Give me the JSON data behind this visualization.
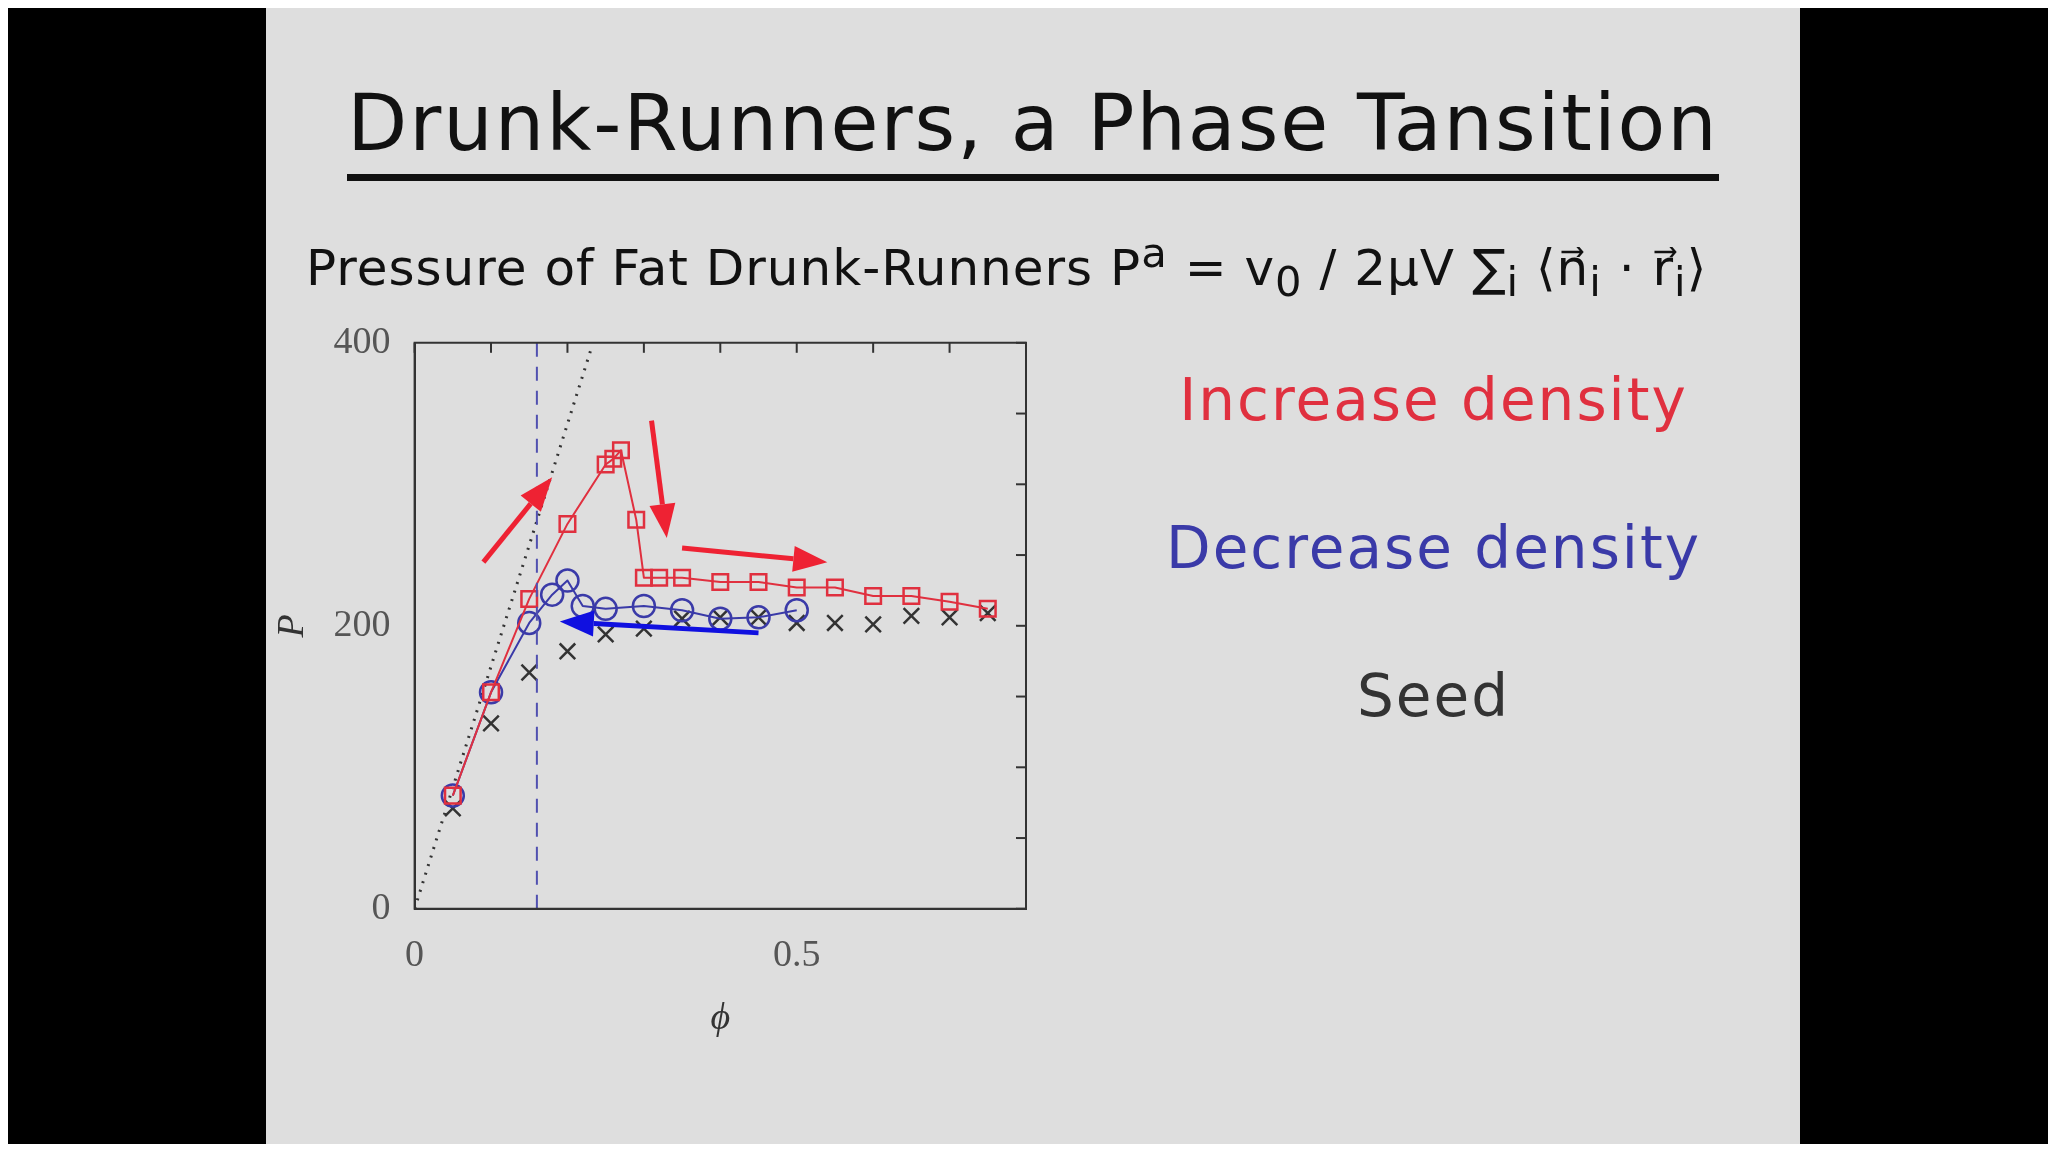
{
  "chart_data": {
    "type": "line",
    "title": "Drunk-Runners, a Phase Tansition",
    "subtitle": "Pressure of Fat Drunk-Runners   P$^{a}$ = v$_{0}$ / 2μV ∑$_{i}$ ⟨n⃗$_{i}$ · r⃗$_{i}$⟩",
    "xlabel": "ϕ",
    "ylabel": "P",
    "xlim": [
      0,
      0.8
    ],
    "ylim": [
      0,
      400
    ],
    "xticks": [
      0,
      {
        "value": 0.1,
        "label": null
      },
      {
        "value": 0.2,
        "label": null
      },
      {
        "value": 0.3,
        "label": null
      },
      {
        "value": 0.4,
        "label": null
      },
      0.5,
      {
        "value": 0.6,
        "label": null
      },
      {
        "value": 0.7,
        "label": null
      }
    ],
    "yticks": [
      0,
      {
        "value": 50,
        "label": null
      },
      {
        "value": 100,
        "label": null
      },
      {
        "value": 150,
        "label": null
      },
      200,
      {
        "value": 250,
        "label": null
      },
      {
        "value": 300,
        "label": null
      },
      {
        "value": 350,
        "label": null
      },
      400
    ],
    "grid": false,
    "legend": "right",
    "series": [
      {
        "name": "Increase density",
        "color": "#e0303f",
        "marker": "square",
        "x": [
          0.05,
          0.1,
          0.15,
          0.2,
          0.25,
          0.26,
          0.27,
          0.29,
          0.3,
          0.32,
          0.35,
          0.4,
          0.45,
          0.5,
          0.55,
          0.6,
          0.65,
          0.7,
          0.75
        ],
        "values": [
          80,
          153,
          219,
          272,
          314,
          318,
          324,
          275,
          234,
          234,
          234,
          231,
          231,
          227,
          227,
          221,
          221,
          217,
          212
        ]
      },
      {
        "name": "Decrease density",
        "color": "#3a3aa8",
        "marker": "circle",
        "x": [
          0.05,
          0.1,
          0.15,
          0.18,
          0.2,
          0.22,
          0.25,
          0.3,
          0.35,
          0.4,
          0.45,
          0.5
        ],
        "values": [
          80,
          153,
          202,
          222,
          232,
          214,
          212,
          214,
          211,
          205,
          206,
          211
        ]
      },
      {
        "name": "Seed",
        "type": "scatter",
        "color": "#333333",
        "marker": "cross",
        "x": [
          0.05,
          0.1,
          0.15,
          0.2,
          0.25,
          0.3,
          0.35,
          0.4,
          0.45,
          0.5,
          0.55,
          0.6,
          0.65,
          0.7,
          0.75
        ],
        "values": [
          71,
          131,
          167,
          182,
          194,
          198,
          205,
          206,
          206,
          202,
          202,
          201,
          207,
          206,
          209
        ]
      },
      {
        "color": "#333333",
        "marker": "none",
        "line_style": "dotted",
        "x": [
          0,
          0.23
        ],
        "values": [
          0,
          394
        ]
      }
    ],
    "ref_lines": [
      {
        "axis": "x",
        "value": 0.16,
        "color": "#5050b0",
        "line_style": "dashed"
      }
    ]
  }
}
